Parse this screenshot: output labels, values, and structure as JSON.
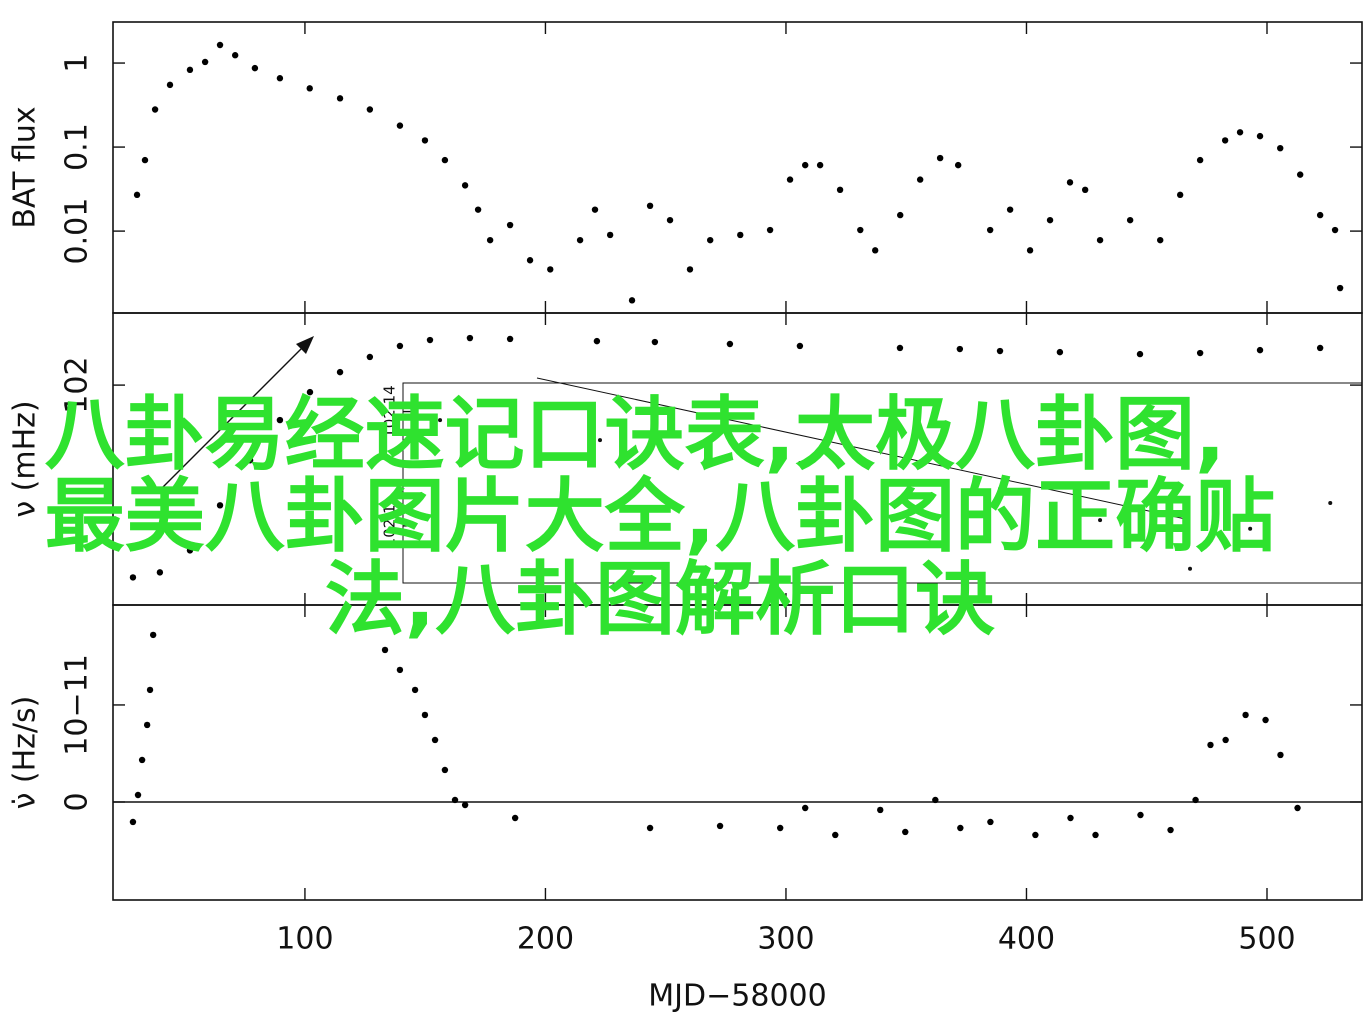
{
  "chart_data": [
    {
      "type": "scatter",
      "ylabel": "BAT flux",
      "yscale": "log",
      "xlim": [
        20.2,
        539.5
      ],
      "ylim": [
        0.00106,
        3.08
      ],
      "yticks": [
        {
          "value": 0.01,
          "label": "0.01"
        },
        {
          "value": 0.1,
          "label": "0.1"
        },
        1
      ],
      "color": "#000000",
      "x": [
        30.2,
        33.5,
        37.7,
        43.9,
        52.2,
        58.5,
        64.7,
        71,
        79.2,
        89.6,
        102,
        114.6,
        127,
        139.5,
        149.9,
        158.2,
        166.6,
        172,
        177,
        185.3,
        193.6,
        202,
        214.4,
        220.6,
        226.9,
        236,
        243.5,
        251.8,
        260.1,
        268.5,
        281,
        293.4,
        301.7,
        308,
        314.2,
        322.5,
        330.9,
        337.1,
        347.5,
        355.8,
        364.1,
        371.6,
        384.9,
        393.2,
        401.5,
        409.8,
        418.1,
        424.4,
        430.6,
        443.1,
        455.6,
        463.9,
        472.2,
        482.6,
        488.8,
        497.1,
        505.5,
        513.8,
        522.1,
        528.3,
        530.4
      ],
      "values": [
        0.027,
        0.07,
        0.28,
        0.55,
        0.83,
        1.03,
        1.64,
        1.24,
        0.87,
        0.66,
        0.5,
        0.38,
        0.28,
        0.18,
        0.12,
        0.07,
        0.035,
        0.018,
        0.0078,
        0.0118,
        0.0045,
        0.0035,
        0.0078,
        0.018,
        0.009,
        0.0015,
        0.02,
        0.0135,
        0.0035,
        0.0078,
        0.009,
        0.0103,
        0.041,
        0.061,
        0.061,
        0.031,
        0.0103,
        0.0059,
        0.0155,
        0.041,
        0.074,
        0.061,
        0.0103,
        0.018,
        0.0059,
        0.0135,
        0.038,
        0.031,
        0.0078,
        0.0135,
        0.0078,
        0.027,
        0.07,
        0.12,
        0.15,
        0.135,
        0.097,
        0.047,
        0.0155,
        0.0103,
        0.0021
      ]
    },
    {
      "type": "scatter",
      "ylabel": "ν (mHz)",
      "xlim": [
        20.2,
        539.5
      ],
      "ylim": [
        100.78,
        102.4
      ],
      "yticks": [
        102
      ],
      "color": "#000000",
      "x": [
        28.5,
        39.7,
        52.2,
        64.7,
        77.2,
        89.6,
        102.1,
        114.6,
        127,
        139.5,
        152,
        168.6,
        185.3,
        221.4,
        245.5,
        276.7,
        305.8,
        347.4,
        372.3,
        389,
        413.9,
        447.2,
        472.2,
        497.1,
        522.1
      ],
      "values": [
        100.933,
        100.961,
        101.083,
        101.333,
        101.583,
        101.806,
        101.961,
        102.072,
        102.156,
        102.217,
        102.25,
        102.261,
        102.256,
        102.244,
        102.239,
        102.228,
        102.217,
        102.206,
        102.2,
        102.189,
        102.183,
        102.172,
        102.178,
        102.194,
        102.206
      ],
      "inset": {
        "xlim": [
          140.8,
          539.5
        ],
        "ylim": [
          102.08,
          102.15
        ],
        "yticks": [
          102.14,
          102.1
        ],
        "x": [
          156.2,
          222.7,
          305.9,
          389,
          430.6,
          468,
          493,
          526.3
        ],
        "values": [
          102.137,
          102.13,
          102.122,
          102.113,
          102.102,
          102.085,
          102.099,
          102.108
        ]
      }
    },
    {
      "type": "scatter",
      "ylabel": "ν̇ (Hz/s)",
      "xlabel": "MJD−58000",
      "xlim": [
        20.2,
        539.5
      ],
      "ylim": [
        -1.01e-11,
        2.03e-11
      ],
      "yticks": [
        0,
        {
          "value": 1e-11,
          "label": "10−11"
        }
      ],
      "xticks": [
        100,
        200,
        300,
        400,
        500
      ],
      "zero_line": true,
      "color": "#000000",
      "x": [
        28.5,
        30.6,
        32.3,
        34.4,
        35.6,
        36.9,
        133.3,
        139.5,
        145.8,
        149.9,
        154.1,
        158.2,
        162.4,
        166.6,
        187.4,
        243.5,
        272.6,
        297.6,
        308,
        320.5,
        339.2,
        349.6,
        362.1,
        372.5,
        385,
        403.7,
        418.3,
        428.7,
        447.4,
        459.9,
        470.3,
        476.5,
        482.8,
        491.1,
        499.4,
        505.6,
        512.7
      ],
      "values": [
        -2.06e-12,
        7.2e-13,
        4.33e-12,
        7.94e-12,
        1.155e-11,
        1.722e-11,
        1.567e-11,
        1.361e-11,
        1.155e-11,
        8.97e-12,
        6.39e-12,
        3.3e-12,
        2.1e-13,
        -3.1e-13,
        -1.65e-12,
        -2.68e-12,
        -2.47e-12,
        -2.68e-12,
        -6.2e-13,
        -3.4e-12,
        -8.2e-13,
        -3.09e-12,
        2.1e-13,
        -2.68e-12,
        -2.06e-12,
        -3.4e-12,
        -1.65e-12,
        -3.4e-12,
        -1.34e-12,
        -2.89e-12,
        2.1e-13,
        5.88e-12,
        6.39e-12,
        8.97e-12,
        8.45e-12,
        4.85e-12,
        -6.2e-13
      ]
    }
  ],
  "overlay": {
    "lines": [
      "八卦易经速记口诀表,太极八卦图,",
      "最美八卦图片大全,八卦图的正确贴",
      "法,八卦图解析口诀"
    ]
  }
}
